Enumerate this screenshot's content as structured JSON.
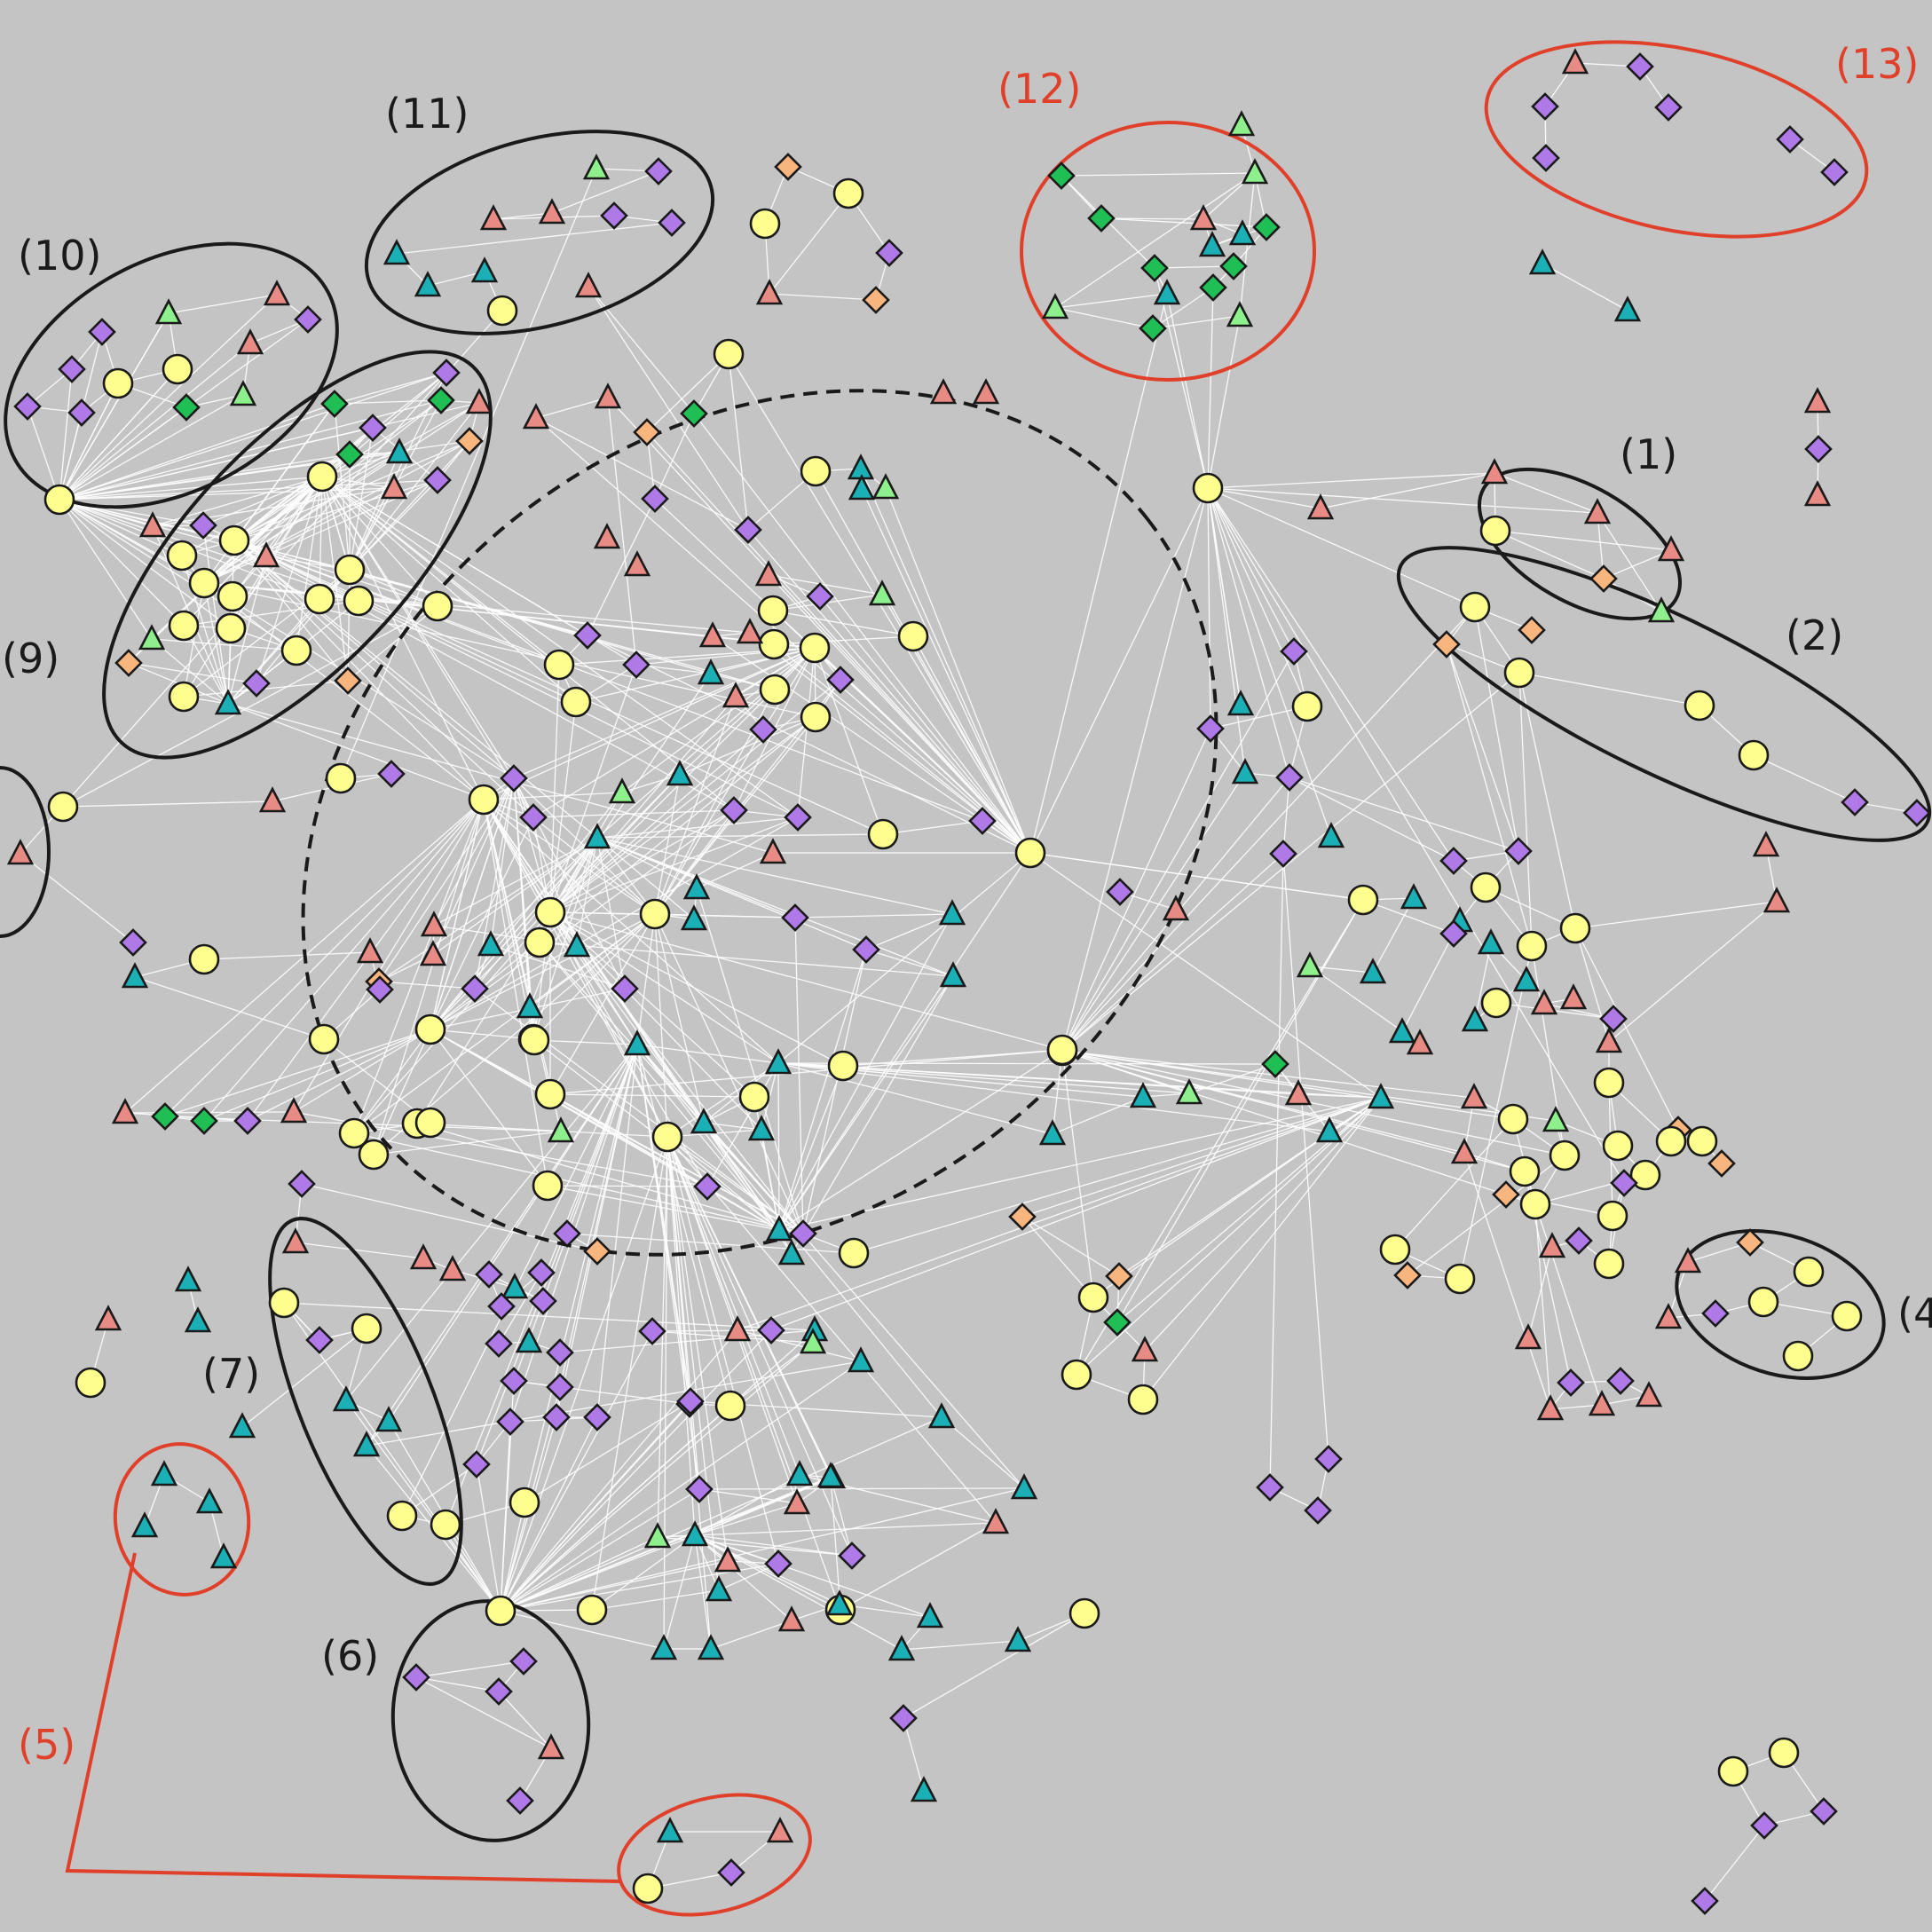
{
  "colors": {
    "background": "#c4c4c4",
    "edge": "#ffffff",
    "circle": "#fefe8e",
    "triangle_red": "#e88b85",
    "triangle_teal": "#1ab0b6",
    "triangle_lightgreen": "#8ef08c",
    "diamond_purple": "#b079e8",
    "diamond_green": "#1fbf55",
    "diamond_orange": "#f8b67e",
    "group_black": "#1a1a1a",
    "group_red": "#e0402a"
  },
  "group_labels": [
    {
      "id": "g1",
      "text": "(1)",
      "color": "black"
    },
    {
      "id": "g2",
      "text": "(2)",
      "color": "black"
    },
    {
      "id": "g4",
      "text": "(4",
      "color": "black"
    },
    {
      "id": "g5",
      "text": "(5)",
      "color": "red"
    },
    {
      "id": "g6",
      "text": "(6)",
      "color": "black"
    },
    {
      "id": "g7",
      "text": "(7)",
      "color": "black"
    },
    {
      "id": "g9",
      "text": "(9)",
      "color": "black"
    },
    {
      "id": "g10",
      "text": "(10)",
      "color": "black"
    },
    {
      "id": "g11",
      "text": "(11)",
      "color": "black"
    },
    {
      "id": "g12",
      "text": "(12)",
      "color": "red"
    },
    {
      "id": "g13",
      "text": "(13)",
      "color": "red"
    }
  ],
  "legend": {
    "node_shapes": [
      "circle",
      "triangle",
      "diamond"
    ]
  }
}
